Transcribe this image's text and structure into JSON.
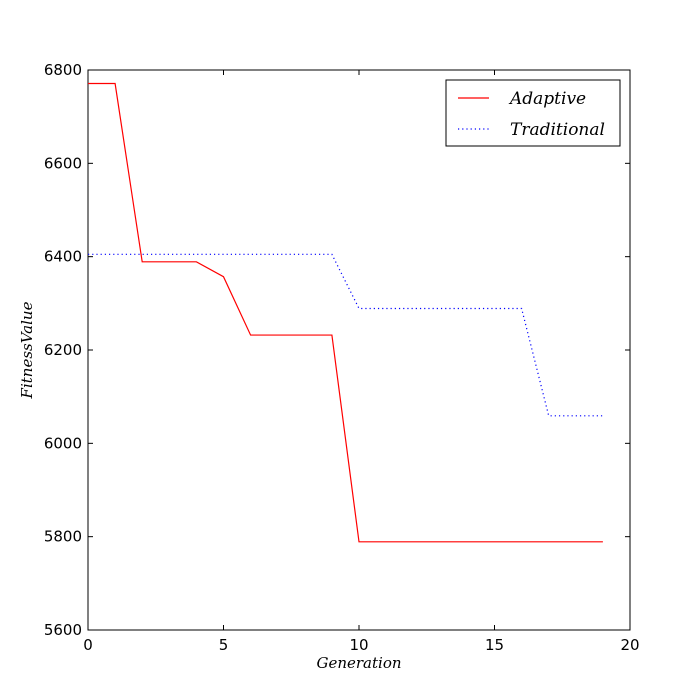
{
  "chart_data": {
    "type": "line",
    "xlabel": "Generation",
    "ylabel": "FitnessValue",
    "xlim": [
      0,
      20
    ],
    "ylim": [
      5600,
      6800
    ],
    "xticks": [
      0,
      5,
      10,
      15,
      20
    ],
    "yticks": [
      5600,
      5800,
      6000,
      6200,
      6400,
      6600,
      6800
    ],
    "grid": false,
    "legend_position": "top-right",
    "series": [
      {
        "name": "Adaptive",
        "color": "#ff0000",
        "style": "solid",
        "x": [
          0,
          1,
          2,
          3,
          4,
          5,
          6,
          7,
          8,
          9,
          10,
          11,
          12,
          13,
          14,
          15,
          16,
          17,
          18,
          19
        ],
        "y": [
          6771,
          6771,
          6389,
          6389,
          6389,
          6357,
          6232,
          6232,
          6232,
          6232,
          5789,
          5789,
          5789,
          5789,
          5789,
          5789,
          5789,
          5789,
          5789,
          5789
        ]
      },
      {
        "name": "Traditional",
        "color": "#0000ff",
        "style": "dotted",
        "x": [
          0,
          1,
          2,
          3,
          4,
          5,
          6,
          7,
          8,
          9,
          10,
          11,
          12,
          13,
          14,
          15,
          16,
          17,
          18,
          19
        ],
        "y": [
          6405,
          6405,
          6405,
          6405,
          6405,
          6405,
          6405,
          6405,
          6405,
          6405,
          6289,
          6289,
          6289,
          6289,
          6289,
          6289,
          6289,
          6059,
          6059,
          6059
        ]
      }
    ]
  }
}
